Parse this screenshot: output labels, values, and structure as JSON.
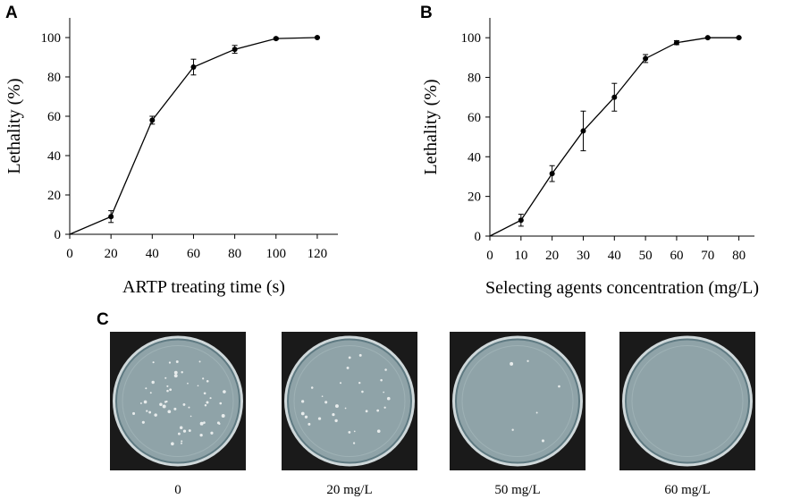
{
  "panels": {
    "a": "A",
    "b": "B",
    "c": "C"
  },
  "colors": {
    "line": "#000000",
    "plate_background": "#1a1a1a",
    "agar": "#8fa3a8",
    "agar_edge": "#5f7a82",
    "colony": "#e8ecec"
  },
  "chart_data": [
    {
      "type": "line",
      "panel": "A",
      "xlabel": "ARTP treating time (s)",
      "ylabel": "Lethality (%)",
      "xlim": [
        0,
        130
      ],
      "ylim": [
        0,
        110
      ],
      "xticks": [
        0,
        20,
        40,
        60,
        80,
        100,
        120
      ],
      "yticks": [
        0,
        20,
        40,
        60,
        80,
        100
      ],
      "grid": false,
      "series": [
        {
          "x": [
            0,
            20,
            40,
            60,
            80,
            100,
            120
          ],
          "y": [
            0,
            9,
            58,
            85,
            94,
            99.5,
            100
          ],
          "error": [
            null,
            3,
            2,
            4,
            2,
            0.5,
            0.3
          ]
        }
      ]
    },
    {
      "type": "line",
      "panel": "B",
      "xlabel": "Selecting agents concentration (mg/L)",
      "ylabel": "Lethality (%)",
      "xlim": [
        0,
        85
      ],
      "ylim": [
        0,
        110
      ],
      "xticks": [
        0,
        10,
        20,
        30,
        40,
        50,
        60,
        70,
        80
      ],
      "yticks": [
        0,
        20,
        40,
        60,
        80,
        100
      ],
      "grid": false,
      "series": [
        {
          "x": [
            0,
            10,
            20,
            30,
            40,
            50,
            60,
            70,
            80
          ],
          "y": [
            0,
            8,
            31.5,
            53,
            70,
            89.5,
            97.5,
            100,
            100
          ],
          "error": [
            null,
            3,
            4,
            10,
            7,
            2,
            1,
            0.3,
            0.3
          ]
        }
      ]
    }
  ],
  "plates": [
    {
      "label": "0",
      "colony_density": "many"
    },
    {
      "label": "20 mg/L",
      "colony_density": "moderate"
    },
    {
      "label": "50 mg/L",
      "colony_density": "few"
    },
    {
      "label": "60 mg/L",
      "colony_density": "none"
    }
  ]
}
